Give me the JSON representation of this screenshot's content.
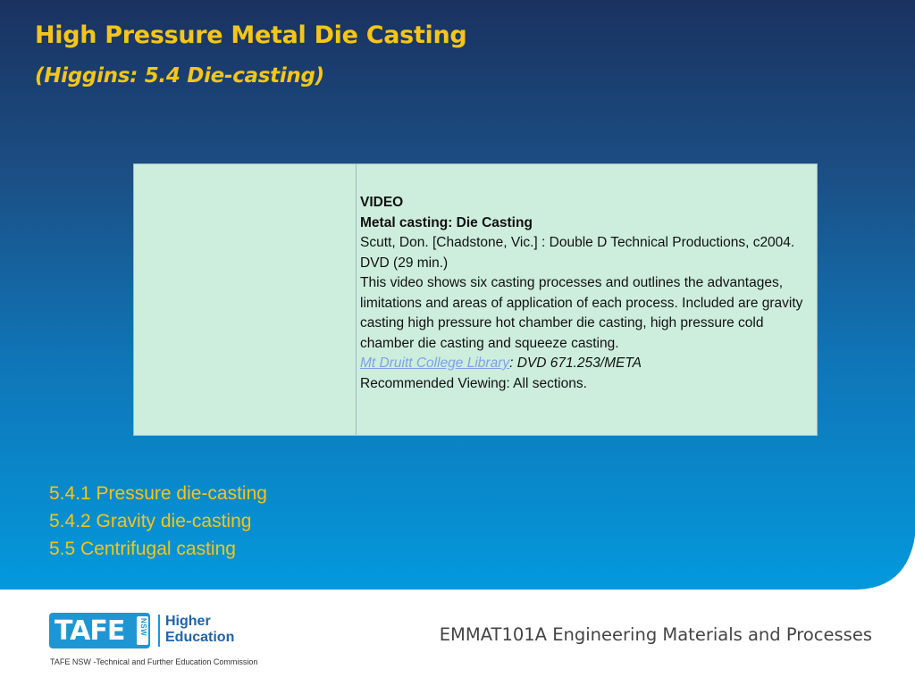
{
  "slide": {
    "title": "High Pressure Metal Die Casting",
    "subtitle": "(Higgins: 5.4 Die-casting)"
  },
  "video_info": {
    "heading": "VIDEO",
    "video_title": "Metal casting: Die Casting",
    "publication": "Scutt, Don. [Chadstone, Vic.] : Double D Technical Productions, c2004. DVD (29 min.)",
    "description": "This video shows six casting processes and outlines the advantages, limitations and areas of application of each process. Included are gravity casting high pressure hot chamber die casting, high pressure cold chamber die casting and squeeze casting.",
    "library_link": "Mt Druitt College Library",
    "call_number": ": DVD 671.253/META",
    "recommended": "Recommended Viewing: All sections."
  },
  "sections": [
    "5.4.1 Pressure die-casting",
    "5.4.2 Gravity die-casting",
    "5.5 Centrifugal casting"
  ],
  "footer": {
    "logo_tafe": "TAFE",
    "logo_nsw": "NSW",
    "logo_line1": "Higher",
    "logo_line2": "Education",
    "org_name": "TAFE NSW -Technical and Further Education Commission",
    "course": "EMMAT101A Engineering Materials and Processes"
  },
  "colors": {
    "title": "#f5c518",
    "background_top": "#1a3260",
    "background_bottom": "#0399dc",
    "table_fill": "#cdeedd",
    "logo_blue": "#1f96d4"
  }
}
